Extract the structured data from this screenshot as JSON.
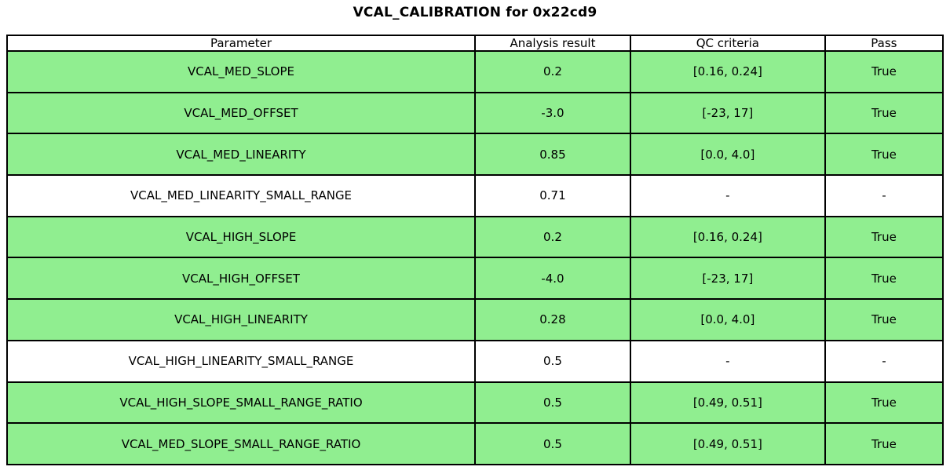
{
  "title": "VCAL_CALIBRATION for 0x22cd9",
  "chart_data": {
    "type": "table",
    "title": "VCAL_CALIBRATION for 0x22cd9",
    "columns": [
      "Parameter",
      "Analysis result",
      "QC criteria",
      "Pass"
    ],
    "rows": [
      {
        "parameter": "VCAL_MED_SLOPE",
        "analysis_result": "0.2",
        "qc_criteria": "[0.16, 0.24]",
        "pass": "True",
        "highlighted": true
      },
      {
        "parameter": "VCAL_MED_OFFSET",
        "analysis_result": "-3.0",
        "qc_criteria": "[-23, 17]",
        "pass": "True",
        "highlighted": true
      },
      {
        "parameter": "VCAL_MED_LINEARITY",
        "analysis_result": "0.85",
        "qc_criteria": "[0.0, 4.0]",
        "pass": "True",
        "highlighted": true
      },
      {
        "parameter": "VCAL_MED_LINEARITY_SMALL_RANGE",
        "analysis_result": "0.71",
        "qc_criteria": "-",
        "pass": "-",
        "highlighted": false
      },
      {
        "parameter": "VCAL_HIGH_SLOPE",
        "analysis_result": "0.2",
        "qc_criteria": "[0.16, 0.24]",
        "pass": "True",
        "highlighted": true
      },
      {
        "parameter": "VCAL_HIGH_OFFSET",
        "analysis_result": "-4.0",
        "qc_criteria": "[-23, 17]",
        "pass": "True",
        "highlighted": true
      },
      {
        "parameter": "VCAL_HIGH_LINEARITY",
        "analysis_result": "0.28",
        "qc_criteria": "[0.0, 4.0]",
        "pass": "True",
        "highlighted": true
      },
      {
        "parameter": "VCAL_HIGH_LINEARITY_SMALL_RANGE",
        "analysis_result": "0.5",
        "qc_criteria": "-",
        "pass": "-",
        "highlighted": false
      },
      {
        "parameter": "VCAL_HIGH_SLOPE_SMALL_RANGE_RATIO",
        "analysis_result": "0.5",
        "qc_criteria": "[0.49, 0.51]",
        "pass": "True",
        "highlighted": true
      },
      {
        "parameter": "VCAL_MED_SLOPE_SMALL_RANGE_RATIO",
        "analysis_result": "0.5",
        "qc_criteria": "[0.49, 0.51]",
        "pass": "True",
        "highlighted": true
      }
    ],
    "colors": {
      "pass_row_bg": "#90EE90",
      "neutral_row_bg": "#FFFFFF",
      "border": "#000000"
    },
    "layout": {
      "legend": "none",
      "grid": "full-borders",
      "column_widths_pct": [
        50.0,
        16.6,
        20.8,
        12.6
      ]
    }
  }
}
